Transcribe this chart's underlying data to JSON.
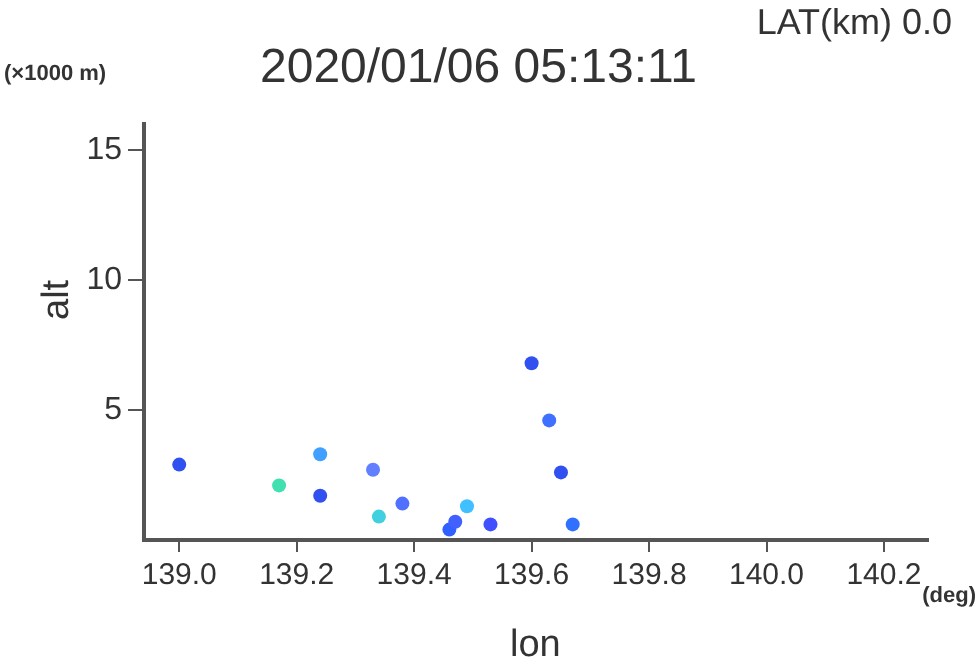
{
  "chart_data": {
    "type": "scatter",
    "title": "2020/01/06 05:13:11",
    "xlabel": "lon",
    "ylabel": "alt",
    "annotations": [
      "LAT(km) 0.0",
      "(×1000 m)",
      "(deg)"
    ],
    "x": [
      139.0,
      139.17,
      139.24,
      139.24,
      139.34,
      139.33,
      139.38,
      139.46,
      139.49,
      139.47,
      139.53,
      139.6,
      139.63,
      139.65,
      139.67
    ],
    "values": [
      2.9,
      2.1,
      3.3,
      1.7,
      0.9,
      2.7,
      1.4,
      0.4,
      1.3,
      0.7,
      0.6,
      6.8,
      4.6,
      2.6,
      0.6
    ],
    "colors": [
      "#3050f0",
      "#40e0b0",
      "#40a0ff",
      "#3050f0",
      "#40d0e0",
      "#6080ff",
      "#5070ff",
      "#3060ff",
      "#40c0ff",
      "#4060ff",
      "#4050ff",
      "#3050f0",
      "#4070ff",
      "#3050f0",
      "#3070ff"
    ],
    "xlim": [
      138.94,
      140.275
    ],
    "ylim": [
      0,
      16
    ],
    "xticks": [
      {
        "value": 139.0,
        "label": "139.0"
      },
      {
        "value": 139.2,
        "label": "139.2"
      },
      {
        "value": 139.4,
        "label": "139.4"
      },
      {
        "value": 139.6,
        "label": "139.6"
      },
      {
        "value": 139.8,
        "label": "139.8"
      },
      {
        "value": 140.0,
        "label": "140.0"
      },
      {
        "value": 140.2,
        "label": "140.2"
      }
    ],
    "yticks": [
      5,
      10,
      15
    ],
    "marker": "circle",
    "grid": false,
    "legend": false
  }
}
